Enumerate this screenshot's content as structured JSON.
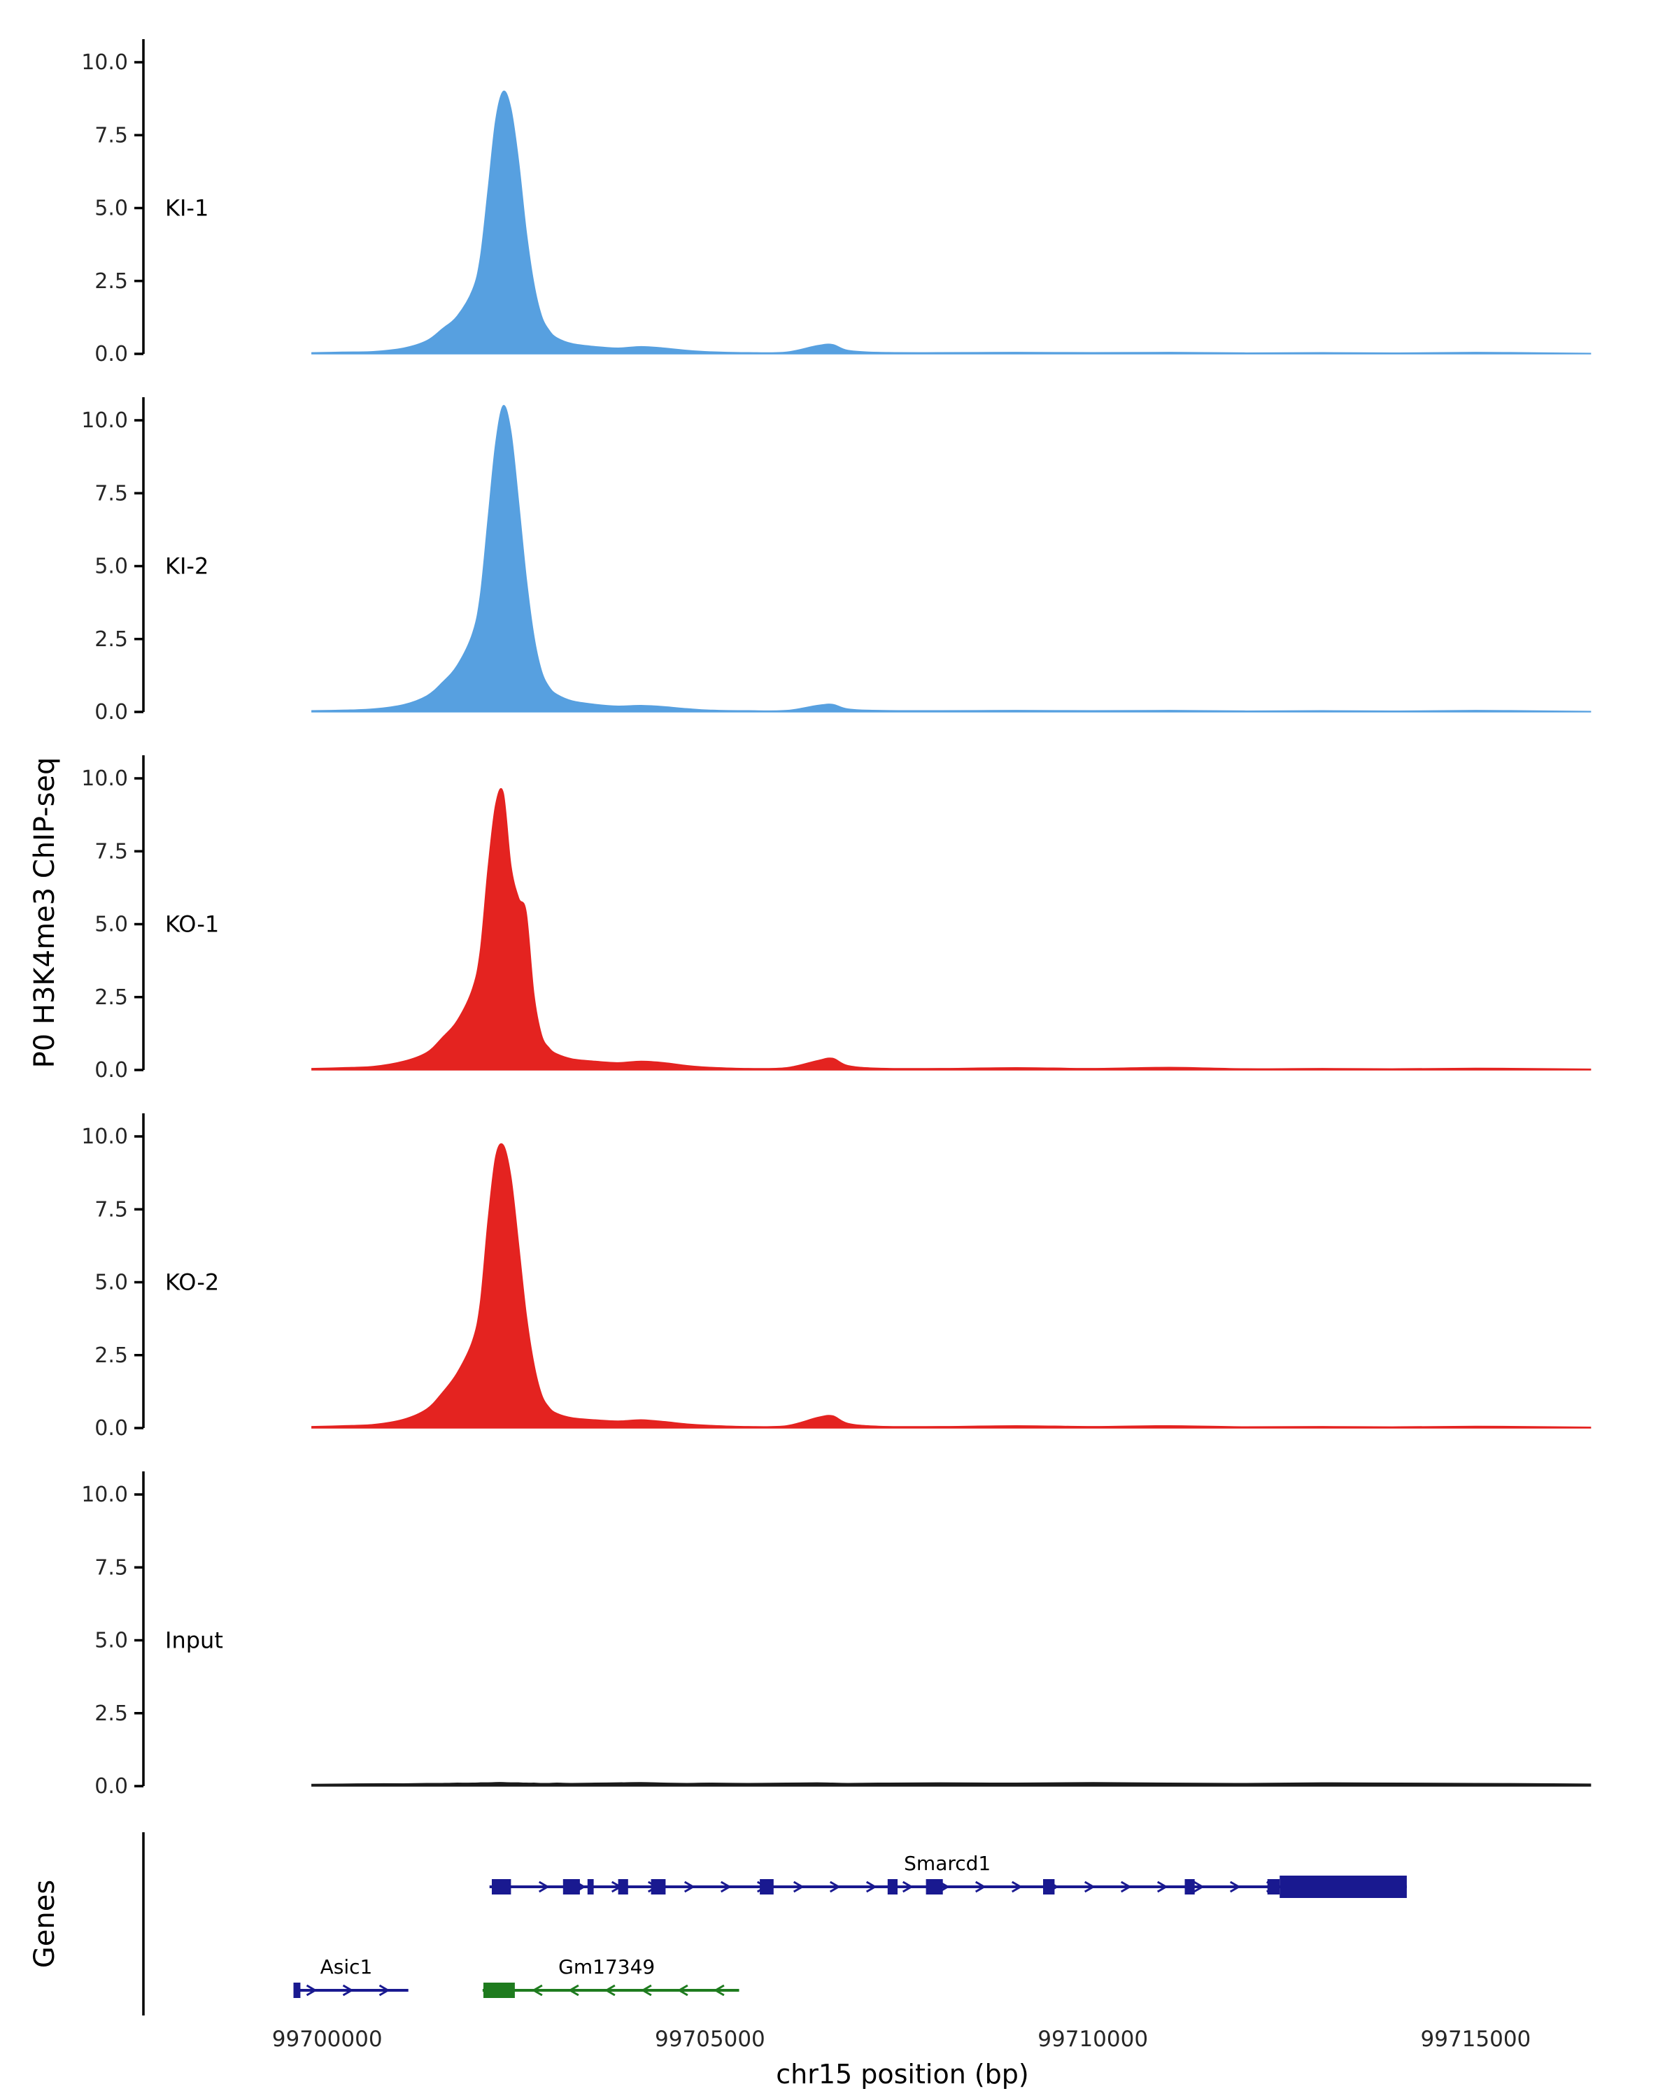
{
  "figure": {
    "y_axis_title": "P0 H3K4me3 ChIP-seq",
    "genes_title": "Genes",
    "x_axis_title": "chr15 position (bp)"
  },
  "axis": {
    "xlim": [
      99697600,
      99716650
    ],
    "ylim": [
      0,
      10.8
    ],
    "y_ticks": [
      {
        "label": "10.0",
        "value": 10.0
      },
      {
        "label": "7.5",
        "value": 7.5
      },
      {
        "label": "5.0",
        "value": 5.0
      },
      {
        "label": "2.5",
        "value": 2.5
      },
      {
        "label": "0.0",
        "value": 0.0
      }
    ],
    "x_ticks": [
      {
        "label": "99700000",
        "bp": 99700000
      },
      {
        "label": "99705000",
        "bp": 99705000
      },
      {
        "label": "99710000",
        "bp": 99710000
      },
      {
        "label": "99715000",
        "bp": 99715000
      }
    ]
  },
  "chart_data": {
    "type": "area",
    "title": "",
    "xlabel": "chr15 position (bp)",
    "ylabel": "P0 H3K4me3 ChIP-seq",
    "grid": false,
    "legend": "none (track labels inside panels)",
    "x_bp": [
      99699800,
      99700200,
      99700600,
      99701000,
      99701300,
      99701500,
      99701700,
      99701900,
      99702000,
      99702100,
      99702200,
      99702300,
      99702400,
      99702500,
      99702600,
      99702700,
      99702800,
      99702900,
      99703000,
      99703200,
      99703500,
      99703800,
      99704100,
      99704400,
      99704700,
      99705000,
      99705500,
      99706000,
      99706400,
      99706600,
      99706800,
      99707200,
      99708000,
      99709000,
      99710000,
      99711000,
      99712000,
      99713000,
      99714000,
      99715000,
      99716000,
      99716500
    ],
    "series": [
      {
        "name": "KI-1",
        "color": "#57A0E0",
        "values": [
          0.04,
          0.06,
          0.08,
          0.2,
          0.45,
          0.85,
          1.3,
          2.2,
          3.3,
          5.6,
          8.0,
          9.0,
          8.4,
          6.6,
          4.2,
          2.4,
          1.3,
          0.8,
          0.55,
          0.35,
          0.25,
          0.2,
          0.25,
          0.2,
          0.12,
          0.07,
          0.04,
          0.06,
          0.28,
          0.32,
          0.12,
          0.05,
          0.04,
          0.05,
          0.04,
          0.05,
          0.03,
          0.04,
          0.03,
          0.05,
          0.03,
          0.02
        ]
      },
      {
        "name": "KI-2",
        "color": "#57A0E0",
        "values": [
          0.04,
          0.06,
          0.1,
          0.25,
          0.55,
          1.0,
          1.6,
          2.7,
          4.0,
          6.6,
          9.2,
          10.5,
          9.6,
          7.2,
          4.6,
          2.6,
          1.4,
          0.85,
          0.6,
          0.38,
          0.26,
          0.2,
          0.22,
          0.18,
          0.11,
          0.06,
          0.04,
          0.05,
          0.22,
          0.26,
          0.1,
          0.05,
          0.04,
          0.05,
          0.04,
          0.05,
          0.03,
          0.04,
          0.03,
          0.05,
          0.03,
          0.02
        ]
      },
      {
        "name": "KO-1",
        "color": "#E42320",
        "values": [
          0.05,
          0.08,
          0.12,
          0.3,
          0.6,
          1.1,
          1.7,
          2.8,
          4.1,
          6.9,
          9.1,
          9.5,
          7.0,
          5.9,
          5.4,
          2.6,
          1.2,
          0.75,
          0.55,
          0.38,
          0.3,
          0.25,
          0.3,
          0.25,
          0.15,
          0.09,
          0.05,
          0.08,
          0.32,
          0.4,
          0.15,
          0.06,
          0.05,
          0.08,
          0.05,
          0.09,
          0.04,
          0.05,
          0.04,
          0.06,
          0.04,
          0.03
        ]
      },
      {
        "name": "KO-2",
        "color": "#E42320",
        "values": [
          0.05,
          0.08,
          0.12,
          0.3,
          0.65,
          1.2,
          1.9,
          3.0,
          4.3,
          7.1,
          9.3,
          9.7,
          8.6,
          6.3,
          3.9,
          2.2,
          1.15,
          0.7,
          0.5,
          0.35,
          0.28,
          0.24,
          0.28,
          0.22,
          0.14,
          0.09,
          0.05,
          0.08,
          0.36,
          0.42,
          0.16,
          0.06,
          0.05,
          0.08,
          0.05,
          0.08,
          0.04,
          0.05,
          0.04,
          0.06,
          0.04,
          0.03
        ]
      },
      {
        "name": "Input",
        "color": "#1a1a1a",
        "values": [
          0.06,
          0.07,
          0.08,
          0.08,
          0.09,
          0.09,
          0.1,
          0.1,
          0.11,
          0.11,
          0.12,
          0.12,
          0.11,
          0.11,
          0.1,
          0.1,
          0.09,
          0.09,
          0.1,
          0.09,
          0.1,
          0.11,
          0.12,
          0.1,
          0.09,
          0.1,
          0.09,
          0.1,
          0.11,
          0.1,
          0.09,
          0.1,
          0.11,
          0.1,
          0.12,
          0.1,
          0.09,
          0.11,
          0.1,
          0.09,
          0.08,
          0.07
        ]
      }
    ]
  },
  "genes": [
    {
      "name": "Smarcd1",
      "color": "#191990",
      "strand": "+",
      "row": 0,
      "start": 99702120,
      "end": 99714100,
      "exons": [
        [
          99702150,
          99702400
        ],
        [
          99703080,
          99703300
        ],
        [
          99703400,
          99703480
        ],
        [
          99703800,
          99703930
        ],
        [
          99704230,
          99704420
        ],
        [
          99705650,
          99705830
        ],
        [
          99707320,
          99707450
        ],
        [
          99707820,
          99708040
        ],
        [
          99709350,
          99709500
        ],
        [
          99711200,
          99711330
        ],
        [
          99712280,
          99712440
        ]
      ],
      "thick": [
        99712440,
        99714100
      ],
      "label_bp": 99708100
    },
    {
      "name": "Asic1",
      "color": "#191990",
      "strand": "+",
      "row": 1,
      "start": 99699560,
      "end": 99701060,
      "exons": [
        [
          99699560,
          99699650
        ]
      ],
      "thick": null,
      "label_bp": 99700250
    },
    {
      "name": "Gm17349",
      "color": "#1E7B1E",
      "strand": "-",
      "row": 1,
      "start": 99702030,
      "end": 99705380,
      "exons": [
        [
          99702040,
          99702450
        ]
      ],
      "thick": null,
      "label_bp": 99703650
    }
  ]
}
